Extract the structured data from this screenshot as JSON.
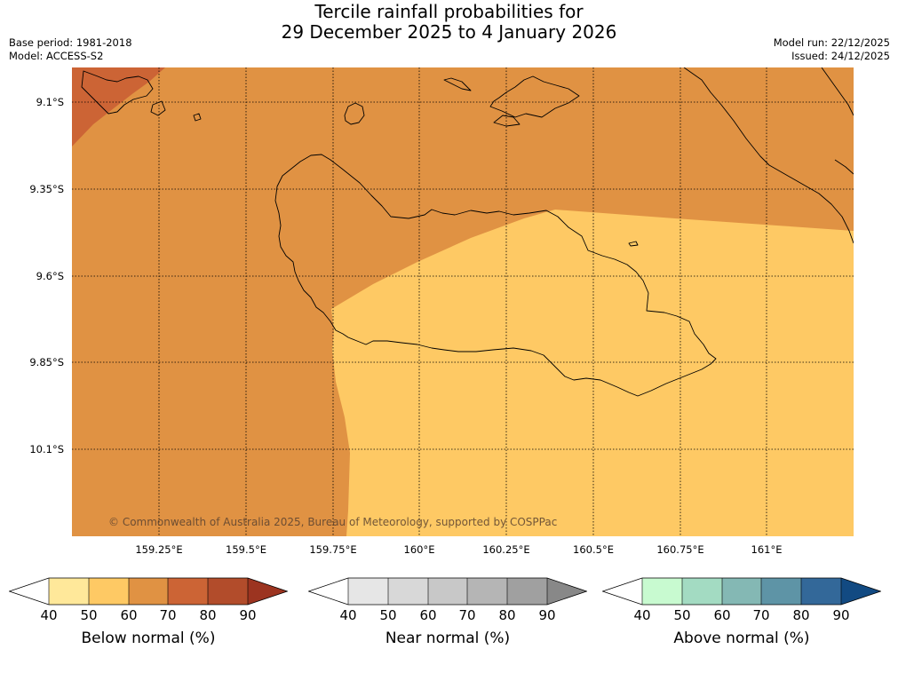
{
  "title": {
    "line1": "Tercile rainfall probabilities for",
    "line2": "29 December 2025 to 4 January 2026"
  },
  "meta": {
    "base_period": "Base period: 1981-2018",
    "model": "Model: ACCESS-S2",
    "model_run": "Model run: 22/12/2025",
    "issued": "Issued: 24/12/2025"
  },
  "map": {
    "copyright": "© Commonwealth of Australia 2025, Bureau of Meteorology, supported by COSPPac",
    "lat_labels": [
      "9.1°S",
      "9.35°S",
      "9.6°S",
      "9.85°S",
      "10.1°S"
    ],
    "lon_labels": [
      "159.25°E",
      "159.5°E",
      "159.75°E",
      "160°E",
      "160.25°E",
      "160.5°E",
      "160.75°E",
      "161°E"
    ],
    "region_colors": {
      "below_50_60": "#fec964",
      "below_60_70": "#e09243",
      "below_70_80": "#cc6435",
      "coastline": "#000000"
    }
  },
  "colorbars": [
    {
      "label": "Below normal (%)",
      "ticks": [
        "40",
        "50",
        "60",
        "70",
        "80",
        "90"
      ],
      "colors": [
        "#ffffff",
        "#ffe89a",
        "#fec964",
        "#e09243",
        "#cc6435",
        "#b24c2b",
        "#9c3420"
      ]
    },
    {
      "label": "Near normal (%)",
      "ticks": [
        "40",
        "50",
        "60",
        "70",
        "80",
        "90"
      ],
      "colors": [
        "#ffffff",
        "#e6e6e6",
        "#d8d8d8",
        "#c8c8c8",
        "#b5b5b5",
        "#a0a0a0",
        "#888888"
      ]
    },
    {
      "label": "Above normal (%)",
      "ticks": [
        "40",
        "50",
        "60",
        "70",
        "80",
        "90"
      ],
      "colors": [
        "#ffffff",
        "#c8fad0",
        "#a3dbc2",
        "#84b8b4",
        "#5e94a6",
        "#336899",
        "#124a82"
      ]
    }
  ]
}
